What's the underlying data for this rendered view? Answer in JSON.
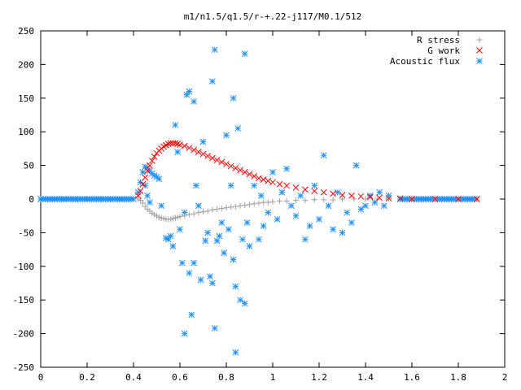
{
  "chart_data": {
    "type": "scatter",
    "title": "m1/n1.5/q1.5/r-+.22-j117/M0.1/512",
    "xlabel": "",
    "ylabel": "",
    "xlim": [
      0,
      2
    ],
    "ylim": [
      -250,
      250
    ],
    "x_ticks": [
      0,
      0.2,
      0.4,
      0.6,
      0.8,
      1,
      1.2,
      1.4,
      1.6,
      1.8,
      2
    ],
    "x_tick_labels": [
      "0",
      "0.2",
      "0.4",
      "0.6",
      "0.8",
      "1",
      "1.2",
      "1.4",
      "1.6",
      "1.8",
      "2"
    ],
    "y_ticks": [
      -250,
      -200,
      -150,
      -100,
      -50,
      0,
      50,
      100,
      150,
      200,
      250
    ],
    "y_tick_labels": [
      "-250",
      "-200",
      "-150",
      "-100",
      "-50",
      "0",
      "50",
      "100",
      "150",
      "200",
      "250"
    ],
    "grid": false,
    "legend_position": "top-right",
    "series": [
      {
        "name": "R stress",
        "marker": "plus",
        "color": "#a0a0a0",
        "points": [
          [
            0.42,
            0
          ],
          [
            0.43,
            -2
          ],
          [
            0.44,
            -6
          ],
          [
            0.45,
            -11
          ],
          [
            0.46,
            -15
          ],
          [
            0.47,
            -18
          ],
          [
            0.48,
            -21
          ],
          [
            0.49,
            -23
          ],
          [
            0.5,
            -25
          ],
          [
            0.51,
            -27
          ],
          [
            0.52,
            -28
          ],
          [
            0.53,
            -29
          ],
          [
            0.54,
            -30
          ],
          [
            0.55,
            -30
          ],
          [
            0.56,
            -30
          ],
          [
            0.57,
            -29
          ],
          [
            0.58,
            -28
          ],
          [
            0.59,
            -27
          ],
          [
            0.6,
            -26
          ],
          [
            0.62,
            -25
          ],
          [
            0.64,
            -23
          ],
          [
            0.66,
            -22
          ],
          [
            0.68,
            -20
          ],
          [
            0.7,
            -19
          ],
          [
            0.72,
            -18
          ],
          [
            0.74,
            -16
          ],
          [
            0.76,
            -15
          ],
          [
            0.78,
            -14
          ],
          [
            0.8,
            -13
          ],
          [
            0.82,
            -12
          ],
          [
            0.84,
            -11
          ],
          [
            0.86,
            -10
          ],
          [
            0.88,
            -9
          ],
          [
            0.9,
            -8
          ],
          [
            0.92,
            -7
          ],
          [
            0.94,
            -6
          ],
          [
            0.96,
            -5
          ],
          [
            0.98,
            -5
          ],
          [
            1.0,
            -4
          ],
          [
            1.03,
            -3
          ],
          [
            1.06,
            -3
          ],
          [
            1.1,
            -2
          ],
          [
            1.14,
            -2
          ],
          [
            1.18,
            -1
          ],
          [
            1.22,
            -1
          ],
          [
            1.26,
            -1
          ],
          [
            1.3,
            0
          ],
          [
            1.35,
            0
          ],
          [
            1.4,
            0
          ],
          [
            1.45,
            0
          ],
          [
            1.5,
            0
          ],
          [
            1.6,
            0
          ],
          [
            1.7,
            0
          ],
          [
            1.8,
            0
          ],
          [
            1.88,
            0
          ]
        ]
      },
      {
        "name": "G work",
        "marker": "cross",
        "color": "#ff0000",
        "points": [
          [
            0.42,
            5
          ],
          [
            0.43,
            12
          ],
          [
            0.44,
            22
          ],
          [
            0.45,
            32
          ],
          [
            0.46,
            42
          ],
          [
            0.47,
            50
          ],
          [
            0.48,
            57
          ],
          [
            0.49,
            63
          ],
          [
            0.5,
            68
          ],
          [
            0.51,
            72
          ],
          [
            0.52,
            75
          ],
          [
            0.53,
            78
          ],
          [
            0.54,
            80
          ],
          [
            0.55,
            82
          ],
          [
            0.56,
            83
          ],
          [
            0.57,
            83
          ],
          [
            0.58,
            83
          ],
          [
            0.59,
            82
          ],
          [
            0.6,
            81
          ],
          [
            0.62,
            79
          ],
          [
            0.64,
            76
          ],
          [
            0.66,
            73
          ],
          [
            0.68,
            70
          ],
          [
            0.7,
            67
          ],
          [
            0.72,
            64
          ],
          [
            0.74,
            61
          ],
          [
            0.76,
            58
          ],
          [
            0.78,
            55
          ],
          [
            0.8,
            52
          ],
          [
            0.82,
            49
          ],
          [
            0.84,
            46
          ],
          [
            0.86,
            43
          ],
          [
            0.88,
            40
          ],
          [
            0.9,
            37
          ],
          [
            0.92,
            34
          ],
          [
            0.94,
            31
          ],
          [
            0.96,
            29
          ],
          [
            0.98,
            27
          ],
          [
            1.0,
            25
          ],
          [
            1.03,
            22
          ],
          [
            1.06,
            20
          ],
          [
            1.1,
            17
          ],
          [
            1.14,
            14
          ],
          [
            1.18,
            12
          ],
          [
            1.22,
            10
          ],
          [
            1.26,
            8
          ],
          [
            1.3,
            6
          ],
          [
            1.34,
            5
          ],
          [
            1.38,
            4
          ],
          [
            1.42,
            3
          ],
          [
            1.46,
            2
          ],
          [
            1.5,
            1
          ],
          [
            1.55,
            1
          ],
          [
            1.6,
            0
          ],
          [
            1.7,
            0
          ],
          [
            1.8,
            0
          ],
          [
            1.88,
            0
          ]
        ]
      },
      {
        "name": "Acoustic flux",
        "marker": "star",
        "color": "#1e90ff",
        "points": [
          [
            0.0,
            0
          ],
          [
            0.05,
            0
          ],
          [
            0.1,
            0
          ],
          [
            0.15,
            0
          ],
          [
            0.2,
            0
          ],
          [
            0.25,
            0
          ],
          [
            0.3,
            0
          ],
          [
            0.35,
            0
          ],
          [
            0.4,
            0
          ],
          [
            0.42,
            10
          ],
          [
            0.43,
            25
          ],
          [
            0.44,
            40
          ],
          [
            0.45,
            48
          ],
          [
            0.46,
            46
          ],
          [
            0.47,
            42
          ],
          [
            0.48,
            38
          ],
          [
            0.49,
            35
          ],
          [
            0.5,
            33
          ],
          [
            0.51,
            30
          ],
          [
            0.45,
            20
          ],
          [
            0.46,
            5
          ],
          [
            0.47,
            -5
          ],
          [
            0.52,
            -10
          ],
          [
            0.54,
            -58
          ],
          [
            0.55,
            -60
          ],
          [
            0.56,
            -55
          ],
          [
            0.57,
            -70
          ],
          [
            0.58,
            110
          ],
          [
            0.59,
            70
          ],
          [
            0.6,
            -45
          ],
          [
            0.61,
            -95
          ],
          [
            0.62,
            -20
          ],
          [
            0.62,
            -200
          ],
          [
            0.63,
            155
          ],
          [
            0.64,
            160
          ],
          [
            0.64,
            -110
          ],
          [
            0.65,
            -172
          ],
          [
            0.66,
            145
          ],
          [
            0.66,
            -95
          ],
          [
            0.67,
            20
          ],
          [
            0.68,
            -10
          ],
          [
            0.69,
            -120
          ],
          [
            0.7,
            85
          ],
          [
            0.71,
            -62
          ],
          [
            0.72,
            -50
          ],
          [
            0.73,
            -115
          ],
          [
            0.74,
            175
          ],
          [
            0.74,
            -125
          ],
          [
            0.75,
            222
          ],
          [
            0.75,
            -192
          ],
          [
            0.76,
            -62
          ],
          [
            0.77,
            -55
          ],
          [
            0.78,
            -35
          ],
          [
            0.79,
            -80
          ],
          [
            0.8,
            95
          ],
          [
            0.81,
            -45
          ],
          [
            0.82,
            20
          ],
          [
            0.83,
            150
          ],
          [
            0.83,
            -90
          ],
          [
            0.84,
            -130
          ],
          [
            0.84,
            -228
          ],
          [
            0.85,
            105
          ],
          [
            0.86,
            -150
          ],
          [
            0.87,
            -60
          ],
          [
            0.88,
            216
          ],
          [
            0.88,
            -155
          ],
          [
            0.89,
            -35
          ],
          [
            0.9,
            -70
          ],
          [
            0.92,
            20
          ],
          [
            0.94,
            -60
          ],
          [
            0.95,
            5
          ],
          [
            0.96,
            -40
          ],
          [
            0.98,
            -20
          ],
          [
            1.0,
            40
          ],
          [
            1.02,
            -30
          ],
          [
            1.04,
            10
          ],
          [
            1.06,
            45
          ],
          [
            1.08,
            -10
          ],
          [
            1.1,
            -25
          ],
          [
            1.12,
            5
          ],
          [
            1.14,
            -60
          ],
          [
            1.16,
            -40
          ],
          [
            1.18,
            20
          ],
          [
            1.2,
            -30
          ],
          [
            1.22,
            65
          ],
          [
            1.24,
            -10
          ],
          [
            1.26,
            -45
          ],
          [
            1.28,
            10
          ],
          [
            1.3,
            -50
          ],
          [
            1.32,
            -20
          ],
          [
            1.34,
            -35
          ],
          [
            1.36,
            50
          ],
          [
            1.38,
            -15
          ],
          [
            1.4,
            -10
          ],
          [
            1.42,
            5
          ],
          [
            1.44,
            -5
          ],
          [
            1.46,
            10
          ],
          [
            1.48,
            -10
          ],
          [
            1.5,
            5
          ],
          [
            1.55,
            0
          ],
          [
            1.6,
            0
          ],
          [
            1.65,
            0
          ],
          [
            1.7,
            0
          ],
          [
            1.75,
            0
          ],
          [
            1.8,
            0
          ],
          [
            1.85,
            0
          ],
          [
            1.88,
            0
          ]
        ]
      }
    ]
  }
}
